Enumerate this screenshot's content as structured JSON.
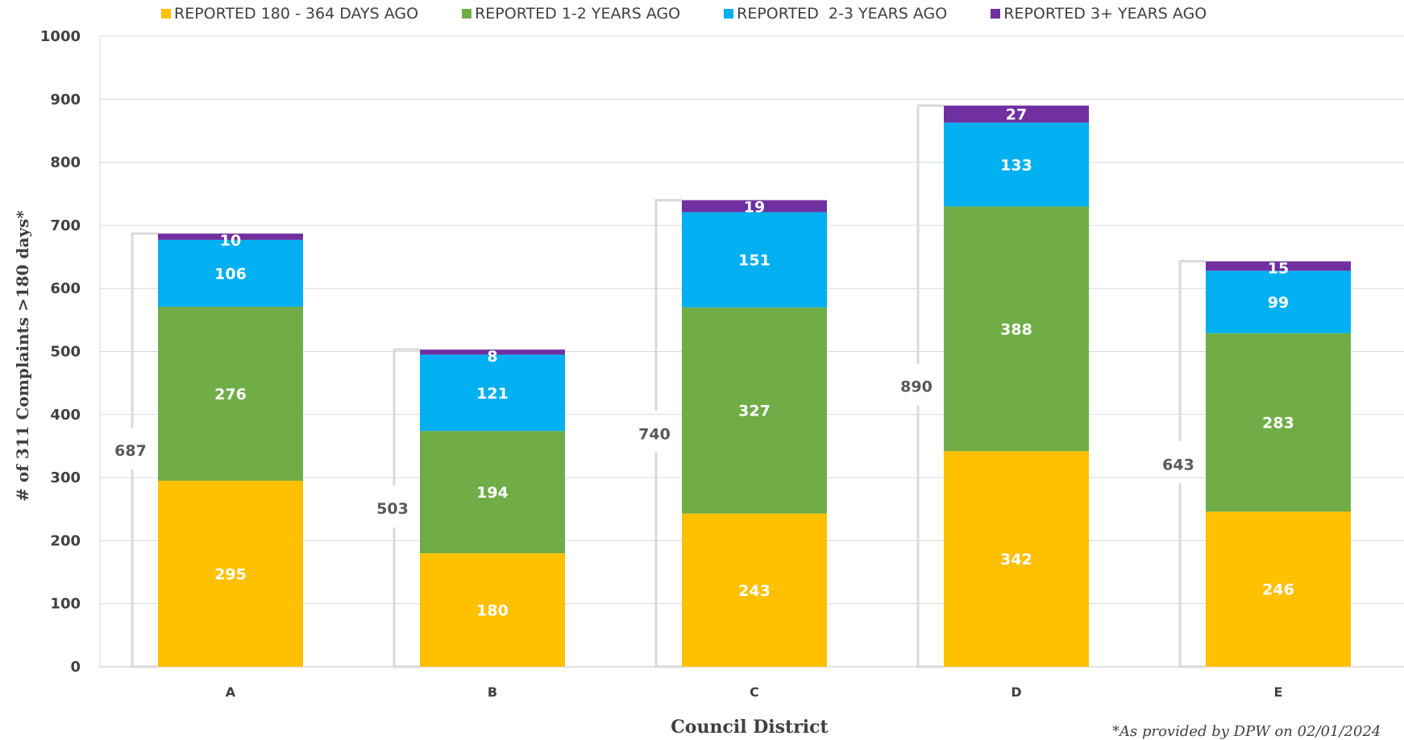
{
  "chart_data": {
    "type": "bar",
    "stacked": true,
    "categories": [
      "A",
      "B",
      "C",
      "D",
      "E"
    ],
    "series": [
      {
        "name": "REPORTED 180 - 364 DAYS AGO",
        "color": "#FFC000",
        "values": [
          295,
          180,
          243,
          342,
          246
        ]
      },
      {
        "name": "REPORTED 1-2 YEARS AGO",
        "color": "#70AD47",
        "values": [
          276,
          194,
          327,
          388,
          283
        ]
      },
      {
        "name": "REPORTED  2-3 YEARS AGO",
        "color": "#00B0F0",
        "values": [
          106,
          121,
          151,
          133,
          99
        ]
      },
      {
        "name": "REPORTED 3+ YEARS AGO",
        "color": "#7030A0",
        "values": [
          10,
          8,
          19,
          27,
          15
        ]
      }
    ],
    "totals": [
      687,
      503,
      740,
      890,
      643
    ],
    "xlabel": "Council District",
    "ylabel": "# of 311 Complaints >180 days*",
    "ylim": [
      0,
      1000
    ],
    "yticks": [
      0,
      100,
      200,
      300,
      400,
      500,
      600,
      700,
      800,
      900,
      1000
    ],
    "grid": true,
    "legend": "top",
    "footnote": "*As provided by DPW on 02/01/2024"
  }
}
